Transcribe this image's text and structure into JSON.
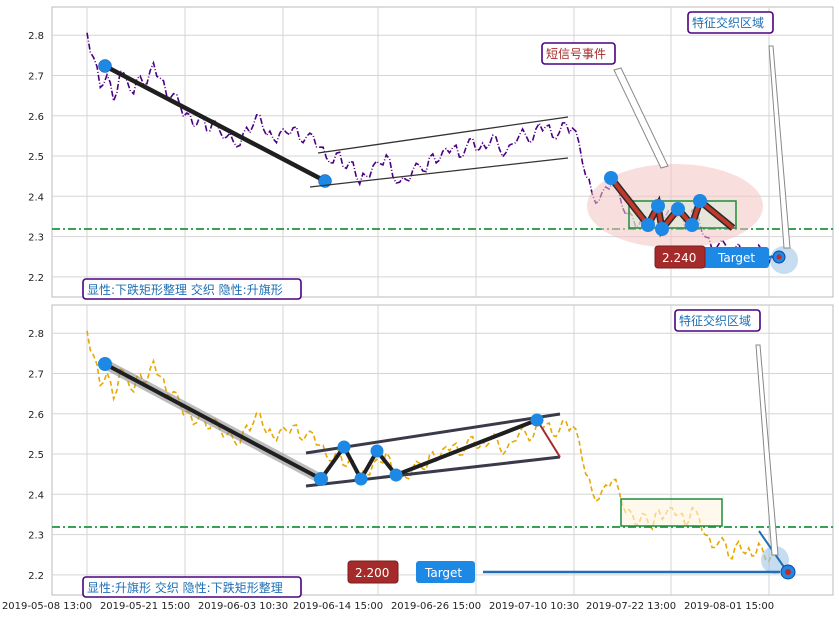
{
  "chart_data": [
    {
      "type": "line",
      "panel": "top",
      "ylim": [
        2.15,
        2.87
      ],
      "y_ticks": [
        "2.8",
        "2.7",
        "2.6",
        "2.5",
        "2.4",
        "2.3",
        "2.2"
      ],
      "y_tick_values": [
        2.8,
        2.7,
        2.6,
        2.5,
        2.4,
        2.3,
        2.2
      ],
      "grid": true,
      "series_color": "#4b0082",
      "series_style": "dash-dot",
      "price": [
        2.8,
        2.74,
        2.68,
        2.7,
        2.64,
        2.7,
        2.69,
        2.66,
        2.7,
        2.68,
        2.72,
        2.7,
        2.65,
        2.66,
        2.62,
        2.6,
        2.58,
        2.6,
        2.57,
        2.58,
        2.56,
        2.55,
        2.54,
        2.53,
        2.56,
        2.58,
        2.6,
        2.56,
        2.54,
        2.55,
        2.56,
        2.57,
        2.55,
        2.54,
        2.55,
        2.52,
        2.5,
        2.49,
        2.5,
        2.47,
        2.48,
        2.44,
        2.45,
        2.47,
        2.48,
        2.5,
        2.46,
        2.43,
        2.44,
        2.46,
        2.48,
        2.47,
        2.5,
        2.49,
        2.51,
        2.53,
        2.5,
        2.52,
        2.54,
        2.51,
        2.53,
        2.55,
        2.52,
        2.5,
        2.53,
        2.56,
        2.55,
        2.54,
        2.57,
        2.58,
        2.55,
        2.56,
        2.58,
        2.56,
        2.54,
        2.45,
        2.41,
        2.38,
        2.42,
        2.44,
        2.41,
        2.36,
        2.34,
        2.33,
        2.35,
        2.32,
        2.36,
        2.34,
        2.37,
        2.35,
        2.33,
        2.36,
        2.34,
        2.3,
        2.27,
        2.29,
        2.27,
        2.24,
        2.28,
        2.26,
        2.25,
        2.27,
        2.24,
        2.25
      ],
      "line_start_value": 2.8,
      "x_ticks": [
        "2019-05-08 13:00",
        "2019-05-21 15:00",
        "2019-06-03 10:30",
        "2019-06-14 15:00",
        "2019-06-26 15:00",
        "2019-07-10 10:30",
        "2019-07-22 13:00",
        "2019-08-01 15:00"
      ],
      "reference_line": 2.31,
      "reference_color": "#1a9641",
      "trend_line": {
        "from": [
          2,
          2.715
        ],
        "to": [
          29,
          2.435
        ]
      },
      "channel": {
        "lower": [
          [
            28,
            2.42
          ],
          [
            60,
            2.49
          ]
        ],
        "upper": [
          [
            28,
            2.5
          ],
          [
            60,
            2.59
          ]
        ]
      },
      "pattern_points": [
        [
          68,
          2.44
        ],
        [
          71,
          2.32
        ],
        [
          72,
          2.37
        ],
        [
          73,
          2.31
        ],
        [
          75,
          2.36
        ],
        [
          77,
          2.32
        ],
        [
          78,
          2.38
        ]
      ],
      "rectangle": {
        "x": [
          68,
          82
        ],
        "y": [
          2.325,
          2.38
        ]
      },
      "ellipse_center": [
        78,
        2.33
      ],
      "target_point": [
        86,
        2.24
      ],
      "labels": {
        "pattern_title": "显性:下跌矩形整理 交织 隐性:升旗形",
        "short_signal": "短信号事件",
        "feature_zone": "特征交织区域",
        "price_tag": "2.240",
        "target_tag": "Target"
      }
    },
    {
      "type": "line",
      "panel": "bottom",
      "ylim": [
        2.15,
        2.87
      ],
      "y_ticks": [
        "2.8",
        "2.7",
        "2.6",
        "2.5",
        "2.4",
        "2.3",
        "2.2"
      ],
      "y_tick_values": [
        2.8,
        2.7,
        2.6,
        2.5,
        2.4,
        2.3,
        2.2
      ],
      "grid": true,
      "series_color": "#e8a800",
      "series_style": "dashed",
      "price": [
        2.8,
        2.74,
        2.68,
        2.7,
        2.64,
        2.7,
        2.69,
        2.66,
        2.7,
        2.68,
        2.72,
        2.7,
        2.65,
        2.66,
        2.62,
        2.6,
        2.58,
        2.6,
        2.57,
        2.58,
        2.56,
        2.55,
        2.54,
        2.53,
        2.56,
        2.58,
        2.6,
        2.56,
        2.54,
        2.55,
        2.56,
        2.57,
        2.55,
        2.54,
        2.55,
        2.52,
        2.5,
        2.49,
        2.5,
        2.47,
        2.48,
        2.44,
        2.45,
        2.47,
        2.48,
        2.5,
        2.46,
        2.43,
        2.44,
        2.46,
        2.48,
        2.47,
        2.5,
        2.49,
        2.51,
        2.53,
        2.5,
        2.52,
        2.54,
        2.51,
        2.53,
        2.55,
        2.52,
        2.5,
        2.53,
        2.56,
        2.55,
        2.54,
        2.57,
        2.58,
        2.55,
        2.56,
        2.58,
        2.56,
        2.54,
        2.45,
        2.41,
        2.38,
        2.42,
        2.44,
        2.41,
        2.36,
        2.34,
        2.33,
        2.35,
        2.32,
        2.36,
        2.34,
        2.37,
        2.35,
        2.33,
        2.36,
        2.34,
        2.3,
        2.27,
        2.29,
        2.27,
        2.24,
        2.28,
        2.26,
        2.25,
        2.27,
        2.24,
        2.25
      ],
      "x_ticks": [
        "2019-05-08 13:00",
        "2019-05-21 15:00",
        "2019-06-03 10:30",
        "2019-06-14 15:00",
        "2019-06-26 15:00",
        "2019-07-10 10:30",
        "2019-07-22 13:00",
        "2019-08-01 15:00"
      ],
      "reference_line": 2.31,
      "reference_color": "#1a9641",
      "trend_line": {
        "from": [
          2,
          2.715
        ],
        "to": [
          29,
          2.425
        ]
      },
      "channel": {
        "lower": [
          [
            28,
            2.415
          ],
          [
            60,
            2.49
          ]
        ],
        "upper": [
          [
            28,
            2.5
          ],
          [
            60,
            2.59
          ]
        ]
      },
      "pattern_points": [
        [
          29,
          2.425
        ],
        [
          32,
          2.51
        ],
        [
          35,
          2.43
        ],
        [
          37,
          2.5
        ],
        [
          39,
          2.44
        ],
        [
          58,
          2.58
        ]
      ],
      "rectangle": {
        "x": [
          68,
          82
        ],
        "y": [
          2.315,
          2.38
        ]
      },
      "target_point": [
        89,
        2.2
      ],
      "labels": {
        "pattern_title": "显性:升旗形 交织 隐性:下跌矩形整理",
        "feature_zone": "特征交织区域",
        "price_tag": "2.200",
        "target_tag": "Target"
      }
    }
  ]
}
